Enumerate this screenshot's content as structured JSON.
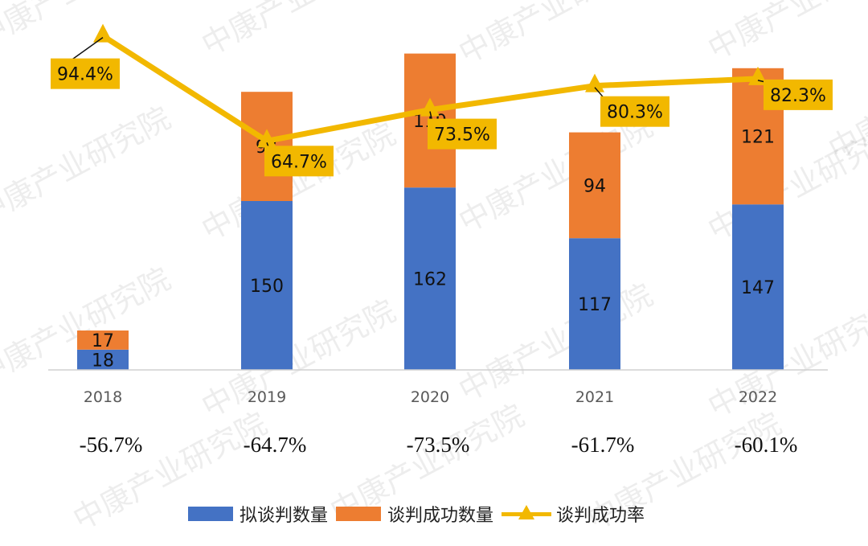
{
  "chart_data": {
    "type": "bar",
    "stacked": true,
    "categories": [
      "2018",
      "2019",
      "2020",
      "2021",
      "2022"
    ],
    "series": [
      {
        "name": "拟谈判数量",
        "type": "bar",
        "color": "#4472C4",
        "values": [
          18,
          150,
          162,
          117,
          147
        ]
      },
      {
        "name": "谈判成功数量",
        "type": "bar",
        "color": "#ED7D31",
        "values": [
          17,
          97,
          119,
          94,
          121
        ]
      },
      {
        "name": "谈判成功率",
        "type": "line",
        "color": "#F2B800",
        "values": [
          94.4,
          64.7,
          73.5,
          80.3,
          82.3
        ],
        "labels": [
          "94.4%",
          "64.7%",
          "73.5%",
          "80.3%",
          "82.3%"
        ]
      }
    ],
    "bottom_labels": [
      "-56.7%",
      "-64.7%",
      "-73.5%",
      "-61.7%",
      "-60.1%"
    ],
    "legend_position": "bottom",
    "grid": false
  },
  "watermark": "中康产业研究院"
}
